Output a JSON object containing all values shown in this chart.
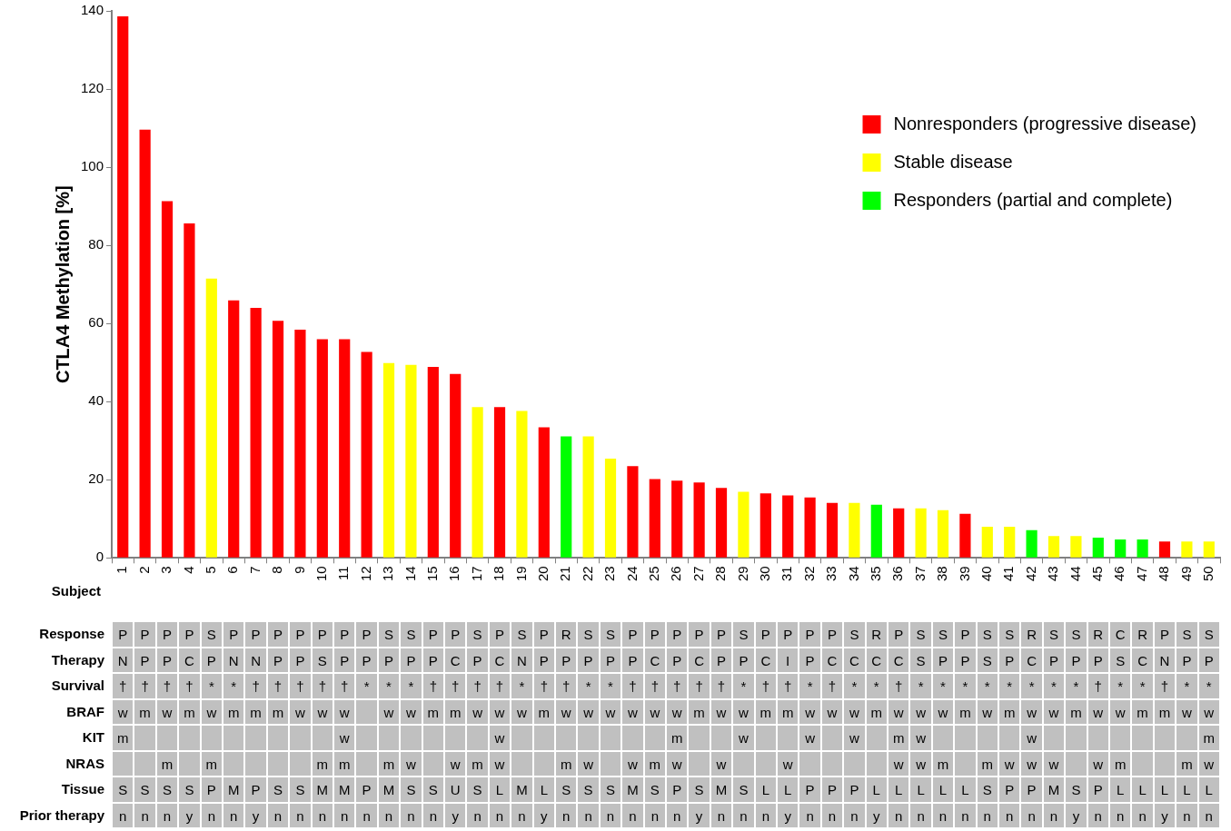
{
  "chart_data": [
    {
      "type": "bar",
      "ylabel": "CTLA4 Methylation [%]",
      "xlabel": "Subject",
      "categories": [
        "1",
        "2",
        "3",
        "4",
        "5",
        "6",
        "7",
        "8",
        "9",
        "10",
        "11",
        "12",
        "13",
        "14",
        "15",
        "16",
        "17",
        "18",
        "19",
        "20",
        "21",
        "22",
        "23",
        "24",
        "25",
        "26",
        "27",
        "28",
        "29",
        "30",
        "31",
        "32",
        "33",
        "34",
        "35",
        "36",
        "37",
        "38",
        "39",
        "40",
        "41",
        "42",
        "43",
        "44",
        "45",
        "46",
        "47",
        "48",
        "49",
        "50"
      ],
      "series": [
        {
          "name": "Nonresponders (progressive disease)",
          "color": "#ff0000",
          "values": [
            138.6,
            109.6,
            91.3,
            85.6,
            null,
            65.9,
            64,
            60.7,
            58.4,
            56,
            56,
            52.7,
            null,
            null,
            48.9,
            47.1,
            null,
            38.6,
            null,
            33.4,
            null,
            null,
            null,
            23.5,
            20.2,
            19.8,
            19.3,
            17.9,
            null,
            16.5,
            16,
            15.5,
            14.1,
            null,
            null,
            12.7,
            null,
            null,
            11.3,
            null,
            null,
            null,
            null,
            null,
            null,
            null,
            null,
            4.2,
            null,
            null
          ]
        },
        {
          "name": "Stable disease",
          "color": "#ffff00",
          "values": [
            null,
            null,
            null,
            null,
            71.5,
            null,
            null,
            null,
            null,
            null,
            null,
            null,
            49.9,
            49.4,
            null,
            null,
            38.6,
            null,
            37.6,
            null,
            null,
            31.1,
            25.4,
            null,
            null,
            null,
            null,
            null,
            16.9,
            null,
            null,
            null,
            null,
            14.1,
            null,
            null,
            12.7,
            12.2,
            null,
            8,
            8,
            null,
            5.6,
            5.6,
            null,
            null,
            null,
            null,
            4.2,
            4.2
          ]
        },
        {
          "name": "Responders (partial and complete)",
          "color": "#00ff00",
          "values": [
            null,
            null,
            null,
            null,
            null,
            null,
            null,
            null,
            null,
            null,
            null,
            null,
            null,
            null,
            null,
            null,
            null,
            null,
            null,
            null,
            31.1,
            null,
            null,
            null,
            null,
            null,
            null,
            null,
            null,
            null,
            null,
            null,
            null,
            null,
            13.6,
            null,
            null,
            null,
            null,
            null,
            null,
            7.1,
            null,
            null,
            5.2,
            4.7,
            4.7,
            null,
            null,
            null
          ]
        }
      ],
      "ylim": [
        0,
        140
      ],
      "yticks": [
        0,
        20,
        40,
        60,
        80,
        100,
        120,
        140
      ],
      "grid": false,
      "legend": "top right"
    },
    {
      "type": "heatmap",
      "tick_labels": "y",
      "categories": [
        null,
        null,
        null,
        null,
        null,
        null,
        null,
        null,
        null,
        null,
        null,
        null,
        null,
        null,
        null,
        null,
        null,
        null,
        null,
        null,
        null,
        null,
        null,
        null,
        null,
        null,
        null,
        null,
        null,
        null,
        null,
        null,
        null,
        null,
        null,
        null,
        null,
        null,
        null,
        null,
        null,
        null,
        null,
        null,
        null,
        null,
        null,
        null,
        null,
        null
      ],
      "y_categories": [
        "Response",
        "Therapy",
        "Survival",
        "BRAF",
        "KIT",
        "NRAS",
        "Tissue",
        "Prior therapy"
      ],
      "cells": [
        [
          null,
          null,
          null,
          null,
          null,
          null,
          null,
          null,
          null,
          null,
          null,
          null,
          null,
          null,
          null,
          null,
          null,
          null,
          null,
          null,
          null,
          null,
          null,
          null,
          null,
          null,
          null,
          null,
          null,
          null,
          null,
          null,
          null,
          null,
          null,
          null,
          null,
          null,
          null,
          null,
          null,
          null,
          null,
          null,
          null,
          null,
          null,
          null,
          null,
          null
        ],
        [
          null,
          null,
          null,
          null,
          null,
          null,
          null,
          null,
          null,
          null,
          null,
          null,
          null,
          null,
          null,
          null,
          null,
          null,
          null,
          null,
          null,
          null,
          null,
          null,
          null,
          null,
          null,
          null,
          null,
          null,
          null,
          null,
          null,
          null,
          null,
          null,
          null,
          null,
          null,
          null,
          null,
          null,
          null,
          null,
          null,
          null,
          null,
          null,
          null,
          null
        ],
        [
          null,
          null,
          null,
          null,
          null,
          null,
          null,
          null,
          null,
          null,
          null,
          null,
          null,
          null,
          null,
          null,
          null,
          null,
          null,
          null,
          null,
          null,
          null,
          null,
          null,
          null,
          null,
          null,
          null,
          null,
          null,
          null,
          null,
          null,
          null,
          null,
          null,
          null,
          null,
          null,
          null,
          null,
          null,
          null,
          null,
          null,
          null,
          null,
          null,
          null
        ],
        [
          null,
          null,
          null,
          null,
          null,
          null,
          null,
          null,
          null,
          null,
          null,
          null,
          null,
          null,
          null,
          null,
          null,
          null,
          null,
          null,
          null,
          null,
          null,
          null,
          null,
          null,
          null,
          null,
          null,
          null,
          null,
          null,
          null,
          null,
          null,
          null,
          null,
          null,
          null,
          null,
          null,
          null,
          null,
          null,
          null,
          null,
          null,
          null,
          null,
          null
        ],
        [
          null,
          null,
          null,
          null,
          null,
          null,
          null,
          null,
          null,
          null,
          null,
          null,
          null,
          null,
          null,
          null,
          null,
          null,
          null,
          null,
          null,
          null,
          null,
          null,
          null,
          null,
          null,
          null,
          null,
          null,
          null,
          null,
          null,
          null,
          null,
          null,
          null,
          null,
          null,
          null,
          null,
          null,
          null,
          null,
          null,
          null,
          null,
          null,
          null,
          null
        ],
        [
          null,
          null,
          null,
          null,
          null,
          null,
          null,
          null,
          null,
          null,
          null,
          null,
          null,
          null,
          null,
          null,
          null,
          null,
          null,
          null,
          null,
          null,
          null,
          null,
          null,
          null,
          null,
          null,
          null,
          null,
          null,
          null,
          null,
          null,
          null,
          null,
          null,
          null,
          null,
          null,
          null,
          null,
          null,
          null,
          null,
          null,
          null,
          null,
          null,
          null
        ],
        [
          null,
          null,
          null,
          null,
          null,
          null,
          null,
          null,
          null,
          null,
          null,
          null,
          null,
          null,
          null,
          null,
          null,
          null,
          null,
          null,
          null,
          null,
          null,
          null,
          null,
          null,
          null,
          null,
          null,
          null,
          null,
          null,
          null,
          null,
          null,
          null,
          null,
          null,
          null,
          null,
          null,
          null,
          null,
          null,
          null,
          null,
          null,
          null,
          null,
          null
        ],
        [
          null,
          null,
          null,
          null,
          null,
          null,
          null,
          null,
          null,
          null,
          null,
          null,
          null,
          null,
          null,
          null,
          null,
          null,
          null,
          null,
          null,
          null,
          null,
          null,
          null,
          null,
          null,
          null,
          null,
          null,
          null,
          null,
          null,
          null,
          null,
          null,
          null,
          null,
          null,
          null,
          null,
          null,
          null,
          null,
          null,
          null,
          null,
          null,
          null,
          null
        ]
      ],
      "cell_labels": [
        [
          "P",
          "P",
          "P",
          "P",
          "S",
          "P",
          "P",
          "P",
          "P",
          "P",
          "P",
          "P",
          "S",
          "S",
          "P",
          "P",
          "S",
          "P",
          "S",
          "P",
          "R",
          "S",
          "S",
          "P",
          "P",
          "P",
          "P",
          "P",
          "S",
          "P",
          "P",
          "P",
          "P",
          "S",
          "R",
          "P",
          "S",
          "S",
          "P",
          "S",
          "S",
          "R",
          "S",
          "S",
          "R",
          "C",
          "R",
          "P",
          "S",
          "S"
        ],
        [
          "N",
          "P",
          "P",
          "C",
          "P",
          "N",
          "N",
          "P",
          "P",
          "S",
          "P",
          "P",
          "P",
          "P",
          "P",
          "C",
          "P",
          "C",
          "N",
          "P",
          "P",
          "P",
          "P",
          "P",
          "C",
          "P",
          "C",
          "P",
          "P",
          "C",
          "I",
          "P",
          "C",
          "C",
          "C",
          "C",
          "S",
          "P",
          "P",
          "S",
          "P",
          "C",
          "P",
          "P",
          "P",
          "S",
          "C",
          "N",
          "P",
          "P"
        ],
        [
          "†",
          "†",
          "†",
          "†",
          "*",
          "*",
          "†",
          "†",
          "†",
          "†",
          "†",
          "*",
          "*",
          "*",
          "†",
          "†",
          "†",
          "†",
          "*",
          "†",
          "†",
          "*",
          "*",
          "†",
          "†",
          "†",
          "†",
          "†",
          "*",
          "†",
          "†",
          "*",
          "†",
          "*",
          "*",
          "†",
          "*",
          "*",
          "*",
          "*",
          "*",
          "*",
          "*",
          "*",
          "†",
          "*",
          "*",
          "†",
          "*",
          "*"
        ],
        [
          "w",
          "m",
          "w",
          "m",
          "w",
          "m",
          "m",
          "m",
          "w",
          "w",
          "w",
          null,
          "w",
          "w",
          "m",
          "m",
          "w",
          "w",
          "w",
          "m",
          "w",
          "w",
          "w",
          "w",
          "w",
          "w",
          "m",
          "w",
          "w",
          "m",
          "m",
          "w",
          "w",
          "w",
          "m",
          "w",
          "w",
          "w",
          "m",
          "w",
          "m",
          "w",
          "w",
          "m",
          "w",
          "w",
          "m",
          "m",
          "w",
          "w"
        ],
        [
          "m",
          null,
          null,
          null,
          null,
          null,
          null,
          null,
          null,
          null,
          "w",
          null,
          null,
          null,
          null,
          null,
          null,
          "w",
          null,
          null,
          null,
          null,
          null,
          null,
          null,
          "m",
          null,
          null,
          "w",
          null,
          null,
          "w",
          null,
          "w",
          null,
          "m",
          "w",
          null,
          null,
          null,
          null,
          "w",
          null,
          null,
          null,
          null,
          null,
          null,
          null,
          "m"
        ],
        [
          null,
          null,
          "m",
          null,
          "m",
          null,
          null,
          null,
          null,
          "m",
          "m",
          null,
          "m",
          "w",
          null,
          "w",
          "m",
          "w",
          null,
          null,
          "m",
          "w",
          null,
          "w",
          "m",
          "w",
          null,
          "w",
          null,
          null,
          "w",
          null,
          null,
          null,
          null,
          "w",
          "w",
          "m",
          null,
          "m",
          "w",
          "w",
          "w",
          null,
          "w",
          "m",
          null,
          null,
          "m",
          "w"
        ],
        [
          "S",
          "S",
          "S",
          "S",
          "P",
          "M",
          "P",
          "S",
          "S",
          "M",
          "M",
          "P",
          "M",
          "S",
          "S",
          "U",
          "S",
          "L",
          "M",
          "L",
          "S",
          "S",
          "S",
          "M",
          "S",
          "P",
          "S",
          "M",
          "S",
          "L",
          "L",
          "P",
          "P",
          "P",
          "L",
          "L",
          "L",
          "L",
          "L",
          "S",
          "P",
          "P",
          "M",
          "S",
          "P",
          "L",
          "L",
          "L",
          "L",
          "L"
        ],
        [
          "n",
          "n",
          "n",
          "y",
          "n",
          "n",
          "y",
          "n",
          "n",
          "n",
          "n",
          "n",
          "n",
          "n",
          "n",
          "y",
          "n",
          "n",
          "n",
          "y",
          "n",
          "n",
          "n",
          "n",
          "n",
          "n",
          "y",
          "n",
          "n",
          "n",
          "y",
          "n",
          "n",
          "n",
          "y",
          "n",
          "n",
          "n",
          "n",
          "n",
          "n",
          "n",
          "n",
          "y",
          "n",
          "n",
          "n",
          "y",
          "n",
          "n"
        ]
      ]
    }
  ]
}
